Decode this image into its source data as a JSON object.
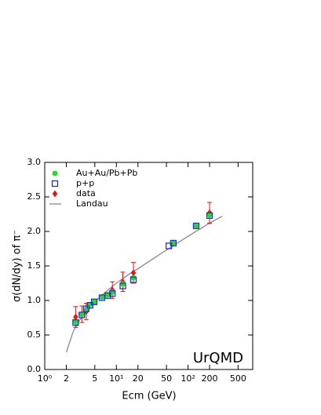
{
  "chart_data": {
    "type": "scatter",
    "ylabel": "σ(dN/dy) of π⁻",
    "xlabel": "Ecm (GeV)",
    "annotation": "UrQMD",
    "xscale": "log",
    "xlim": [
      1,
      800
    ],
    "ylim": [
      0,
      3
    ],
    "xticks": [
      {
        "value": 1,
        "label": "10⁰"
      },
      2,
      5,
      {
        "value": 10,
        "label": "10¹"
      },
      20.0,
      50.0,
      {
        "value": 100,
        "label": "10²"
      },
      200.0,
      500.0
    ],
    "xtick_labels_short": true,
    "yticks": [
      {
        "value": 0,
        "label": "0.0"
      },
      0.5,
      {
        "value": 1,
        "label": "1.0"
      },
      1.5,
      {
        "value": 2,
        "label": "2.0"
      },
      2.5,
      {
        "value": 3,
        "label": "3.0"
      }
    ],
    "legend": "upper left",
    "series": [
      {
        "name": "Au+Au/Pb+Pb",
        "color": "#22dd22",
        "marker": "circle",
        "x": [
          2.7,
          3.3,
          3.8,
          4.3,
          4.9,
          6.3,
          7.6,
          8.8,
          12.3,
          17.3,
          62.4,
          130,
          200
        ],
        "values": [
          0.69,
          0.8,
          0.87,
          0.94,
          0.98,
          1.05,
          1.08,
          1.12,
          1.24,
          1.33,
          1.83,
          2.08,
          2.24
        ]
      },
      {
        "name": "p+p",
        "color": "#2233cc",
        "marker": "square",
        "x": [
          2.7,
          3.3,
          3.8,
          4.3,
          4.9,
          6.3,
          7.6,
          8.8,
          12.3,
          17.3,
          54,
          62.4,
          130,
          200
        ],
        "values": [
          0.68,
          0.79,
          0.88,
          0.93,
          0.98,
          1.04,
          1.07,
          1.1,
          1.21,
          1.3,
          1.79,
          1.83,
          2.08,
          2.23
        ]
      },
      {
        "name": "data",
        "color": "#ee1111",
        "marker": "diamond",
        "x": [
          2.7,
          3.3,
          3.8,
          8.8,
          12.3,
          17.3,
          200
        ],
        "values": [
          0.76,
          0.8,
          0.84,
          1.15,
          1.27,
          1.4,
          2.27
        ],
        "errors": [
          0.15,
          0.12,
          0.12,
          0.12,
          0.14,
          0.15,
          0.15
        ]
      },
      {
        "name": "Landau",
        "color": "#888888",
        "marker": "line",
        "x": [
          2,
          2.5,
          3,
          4,
          5,
          7,
          10,
          15,
          20,
          30,
          50,
          100,
          200,
          300
        ],
        "values": [
          0.25,
          0.55,
          0.7,
          0.87,
          0.98,
          1.12,
          1.25,
          1.38,
          1.46,
          1.58,
          1.73,
          1.93,
          2.12,
          2.22
        ]
      }
    ]
  }
}
